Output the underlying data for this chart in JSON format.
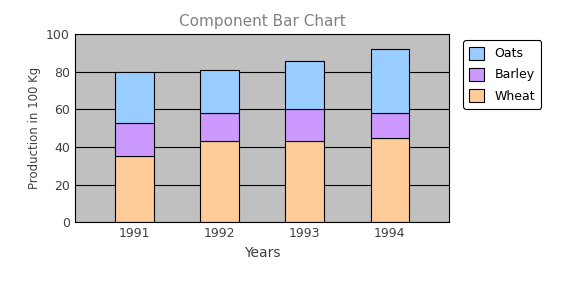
{
  "title": "Component Bar Chart",
  "xlabel": "Years",
  "ylabel": "Production in 100 Kg",
  "years": [
    "1991",
    "1992",
    "1993",
    "1994"
  ],
  "wheat": [
    35,
    43,
    43,
    45
  ],
  "barley": [
    18,
    15,
    17,
    13
  ],
  "oats": [
    27,
    23,
    26,
    34
  ],
  "wheat_color": "#FFCC99",
  "barley_color": "#CC99FF",
  "oats_color": "#99CCFF",
  "bar_edge_color": "#000000",
  "fig_bg": "#FFFFFF",
  "plot_bg": "#C0C0C0",
  "ylim": [
    0,
    100
  ],
  "yticks": [
    0,
    20,
    40,
    60,
    80,
    100
  ],
  "bar_width": 0.45,
  "title_color": "#808080",
  "tick_color": "#404040",
  "grid_color": "#000000"
}
